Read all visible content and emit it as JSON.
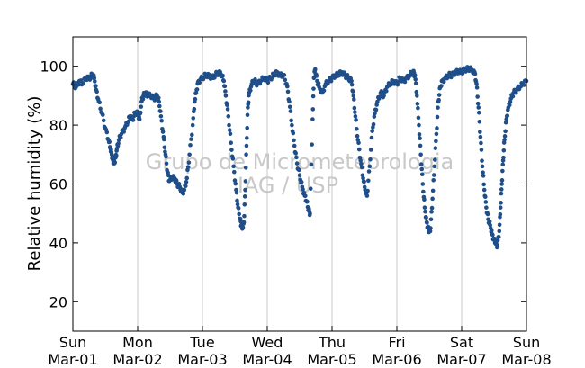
{
  "chart_data": {
    "type": "scatter",
    "ylabel": "Relative humidity (%)",
    "xlabel": "",
    "title": "",
    "ylim": [
      10,
      110
    ],
    "xlim": [
      "2015-03-01",
      "2015-03-08"
    ],
    "yticks": [
      20,
      40,
      60,
      80,
      100
    ],
    "x_ticks": [
      {
        "day": "Sun",
        "date": "Mar-01"
      },
      {
        "day": "Mon",
        "date": "Mar-02"
      },
      {
        "day": "Tue",
        "date": "Mar-03"
      },
      {
        "day": "Wed",
        "date": "Mar-04"
      },
      {
        "day": "Thu",
        "date": "Mar-05"
      },
      {
        "day": "Fri",
        "date": "Mar-06"
      },
      {
        "day": "Sat",
        "date": "Mar-07"
      },
      {
        "day": "Sun",
        "date": "Mar-08"
      }
    ],
    "vertical_grid": true,
    "watermark": [
      "Grupo de Micrometeorologia",
      "IAG / USP"
    ],
    "marker_color": "#1f4e89",
    "x_unit": "days",
    "series": [
      {
        "name": "",
        "points": [
          [
            0.0,
            94
          ],
          [
            0.05,
            93
          ],
          [
            0.1,
            95
          ],
          [
            0.15,
            94
          ],
          [
            0.2,
            96
          ],
          [
            0.25,
            96
          ],
          [
            0.3,
            97
          ],
          [
            0.33,
            96
          ],
          [
            0.36,
            92
          ],
          [
            0.4,
            88
          ],
          [
            0.45,
            84
          ],
          [
            0.5,
            79
          ],
          [
            0.55,
            75
          ],
          [
            0.58,
            72
          ],
          [
            0.6,
            70
          ],
          [
            0.62,
            68
          ],
          [
            0.64,
            67
          ],
          [
            0.66,
            69
          ],
          [
            0.68,
            72
          ],
          [
            0.71,
            75
          ],
          [
            0.75,
            77
          ],
          [
            0.8,
            79
          ],
          [
            0.85,
            81
          ],
          [
            0.88,
            83
          ],
          [
            0.92,
            82
          ],
          [
            0.96,
            84
          ],
          [
            1.0,
            84
          ],
          [
            1.03,
            82
          ],
          [
            1.06,
            88
          ],
          [
            1.09,
            90
          ],
          [
            1.12,
            91
          ],
          [
            1.16,
            90
          ],
          [
            1.2,
            90
          ],
          [
            1.25,
            89
          ],
          [
            1.3,
            90
          ],
          [
            1.33,
            88
          ],
          [
            1.36,
            83
          ],
          [
            1.4,
            76
          ],
          [
            1.43,
            70
          ],
          [
            1.46,
            64
          ],
          [
            1.49,
            61
          ],
          [
            1.53,
            62
          ],
          [
            1.57,
            62
          ],
          [
            1.61,
            60
          ],
          [
            1.65,
            59
          ],
          [
            1.69,
            57
          ],
          [
            1.72,
            58
          ],
          [
            1.76,
            62
          ],
          [
            1.8,
            70
          ],
          [
            1.85,
            80
          ],
          [
            1.88,
            88
          ],
          [
            1.91,
            92
          ],
          [
            1.94,
            95
          ],
          [
            2.0,
            96
          ],
          [
            2.05,
            97
          ],
          [
            2.1,
            97
          ],
          [
            2.15,
            96
          ],
          [
            2.2,
            97
          ],
          [
            2.25,
            98
          ],
          [
            2.3,
            97
          ],
          [
            2.33,
            95
          ],
          [
            2.36,
            90
          ],
          [
            2.4,
            83
          ],
          [
            2.44,
            74
          ],
          [
            2.48,
            66
          ],
          [
            2.52,
            58
          ],
          [
            2.55,
            52
          ],
          [
            2.58,
            48
          ],
          [
            2.6,
            46
          ],
          [
            2.62,
            45
          ],
          [
            2.64,
            47
          ],
          [
            2.66,
            58
          ],
          [
            2.68,
            73
          ],
          [
            2.7,
            86
          ],
          [
            2.72,
            91
          ],
          [
            2.76,
            94
          ],
          [
            2.8,
            95
          ],
          [
            2.85,
            94
          ],
          [
            2.9,
            95
          ],
          [
            2.95,
            96
          ],
          [
            3.0,
            95
          ],
          [
            3.05,
            96
          ],
          [
            3.1,
            97
          ],
          [
            3.15,
            98
          ],
          [
            3.2,
            97
          ],
          [
            3.25,
            97
          ],
          [
            3.3,
            94
          ],
          [
            3.34,
            88
          ],
          [
            3.38,
            80
          ],
          [
            3.42,
            73
          ],
          [
            3.46,
            67
          ],
          [
            3.5,
            63
          ],
          [
            3.54,
            59
          ],
          [
            3.58,
            56
          ],
          [
            3.61,
            54
          ],
          [
            3.64,
            51
          ],
          [
            3.66,
            50
          ],
          [
            3.7,
            82
          ],
          [
            3.72,
            96
          ],
          [
            3.74,
            99
          ],
          [
            3.77,
            95
          ],
          [
            3.8,
            93
          ],
          [
            3.85,
            91
          ],
          [
            3.9,
            94
          ],
          [
            3.95,
            95
          ],
          [
            4.0,
            96
          ],
          [
            4.05,
            97
          ],
          [
            4.1,
            97
          ],
          [
            4.15,
            98
          ],
          [
            4.2,
            97
          ],
          [
            4.25,
            96
          ],
          [
            4.3,
            95
          ],
          [
            4.33,
            90
          ],
          [
            4.36,
            83
          ],
          [
            4.4,
            75
          ],
          [
            4.44,
            68
          ],
          [
            4.48,
            62
          ],
          [
            4.51,
            58
          ],
          [
            4.54,
            56
          ],
          [
            4.58,
            66
          ],
          [
            4.62,
            78
          ],
          [
            4.66,
            84
          ],
          [
            4.7,
            88
          ],
          [
            4.75,
            91
          ],
          [
            4.8,
            90
          ],
          [
            4.85,
            93
          ],
          [
            4.9,
            94
          ],
          [
            4.95,
            95
          ],
          [
            5.0,
            94
          ],
          [
            5.05,
            96
          ],
          [
            5.1,
            95
          ],
          [
            5.15,
            96
          ],
          [
            5.2,
            97
          ],
          [
            5.25,
            98
          ],
          [
            5.28,
            97
          ],
          [
            5.31,
            90
          ],
          [
            5.34,
            80
          ],
          [
            5.37,
            70
          ],
          [
            5.4,
            60
          ],
          [
            5.43,
            52
          ],
          [
            5.46,
            47
          ],
          [
            5.48,
            45
          ],
          [
            5.5,
            44
          ],
          [
            5.52,
            45
          ],
          [
            5.55,
            55
          ],
          [
            5.58,
            66
          ],
          [
            5.61,
            77
          ],
          [
            5.64,
            88
          ],
          [
            5.67,
            93
          ],
          [
            5.7,
            95
          ],
          [
            5.75,
            96
          ],
          [
            5.8,
            97
          ],
          [
            5.85,
            97
          ],
          [
            5.9,
            98
          ],
          [
            5.95,
            98
          ],
          [
            6.0,
            98
          ],
          [
            6.05,
            99
          ],
          [
            6.1,
            99
          ],
          [
            6.15,
            99
          ],
          [
            6.2,
            98
          ],
          [
            6.23,
            94
          ],
          [
            6.26,
            86
          ],
          [
            6.29,
            76
          ],
          [
            6.32,
            66
          ],
          [
            6.35,
            58
          ],
          [
            6.38,
            52
          ],
          [
            6.41,
            48
          ],
          [
            6.44,
            46
          ],
          [
            6.47,
            43
          ],
          [
            6.5,
            41
          ],
          [
            6.53,
            40
          ],
          [
            6.55,
            39
          ],
          [
            6.58,
            44
          ],
          [
            6.6,
            52
          ],
          [
            6.62,
            60
          ],
          [
            6.64,
            68
          ],
          [
            6.66,
            75
          ],
          [
            6.69,
            82
          ],
          [
            6.72,
            86
          ],
          [
            6.76,
            89
          ],
          [
            6.8,
            91
          ],
          [
            6.85,
            92
          ],
          [
            6.9,
            93
          ],
          [
            6.95,
            94
          ],
          [
            7.0,
            95
          ]
        ]
      }
    ]
  }
}
